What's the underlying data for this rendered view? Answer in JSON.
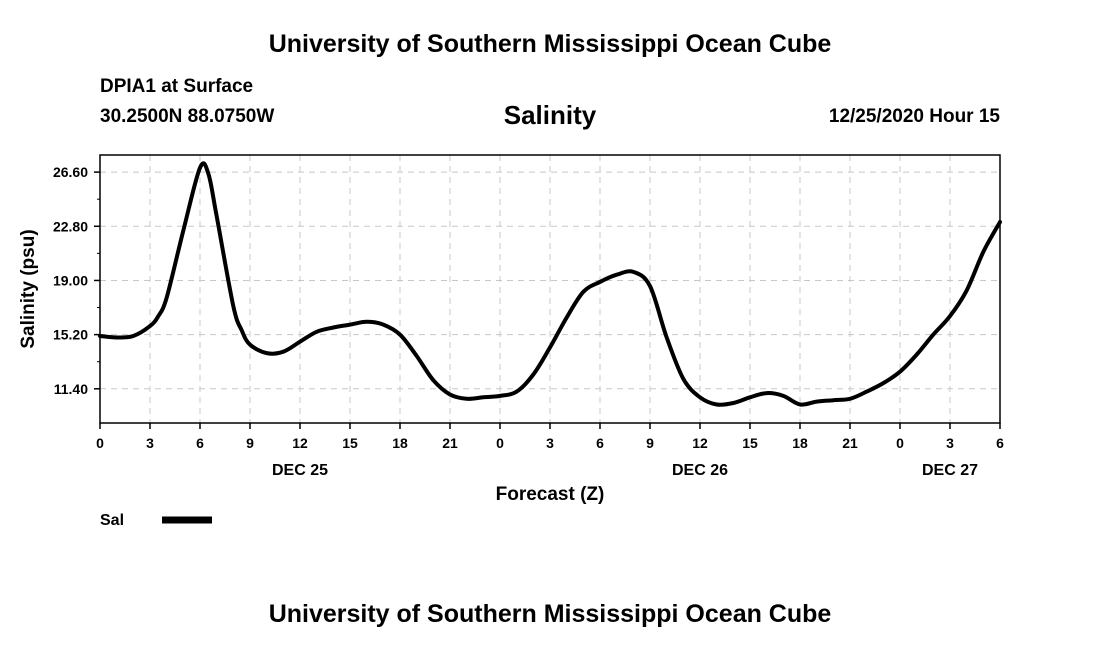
{
  "header": {
    "top_title": "University of Southern Mississippi Ocean Cube",
    "station": "DPIA1 at Surface",
    "coords": "30.2500N 88.0750W",
    "timestamp": "12/25/2020 Hour 15",
    "bottom_title": "University of Southern Mississippi Ocean Cube"
  },
  "legend": {
    "label": "Sal"
  },
  "chart_data": {
    "type": "line",
    "title": "Salinity",
    "xlabel": "Forecast (Z)",
    "ylabel": "Salinity (psu)",
    "xlim": [
      0,
      54
    ],
    "ylim": [
      9.0,
      27.8
    ],
    "yticks": [
      11.4,
      15.2,
      19.0,
      22.8,
      26.6
    ],
    "ytick_labels": [
      "11.40",
      "15.20",
      "19.00",
      "22.80",
      "26.60"
    ],
    "xticks": [
      0,
      3,
      6,
      9,
      12,
      15,
      18,
      21,
      24,
      27,
      30,
      33,
      36,
      39,
      42,
      45,
      48,
      51,
      54
    ],
    "xtick_labels": [
      "0",
      "3",
      "6",
      "9",
      "12",
      "15",
      "18",
      "21",
      "0",
      "3",
      "6",
      "9",
      "12",
      "15",
      "18",
      "21",
      "0",
      "3",
      "6"
    ],
    "date_labels": [
      {
        "x": 12,
        "label": "DEC 25"
      },
      {
        "x": 36,
        "label": "DEC 26"
      },
      {
        "x": 51,
        "label": "DEC 27"
      }
    ],
    "grid": true,
    "series": [
      {
        "name": "Sal",
        "color": "#000000",
        "x": [
          0,
          1,
          2,
          3,
          3.5,
          4,
          5,
          6,
          6.5,
          7,
          8,
          8.5,
          9,
          10,
          11,
          12,
          13,
          14,
          15,
          16,
          17,
          18,
          19,
          20,
          21,
          22,
          23,
          24,
          25,
          26,
          27,
          28,
          29,
          30,
          31,
          32,
          33,
          34,
          35,
          36,
          37,
          38,
          39,
          40,
          41,
          42,
          43,
          44,
          45,
          46,
          47,
          48,
          49,
          50,
          51,
          52,
          53,
          54
        ],
        "values": [
          15.1,
          15.0,
          15.1,
          15.8,
          16.5,
          17.8,
          22.5,
          26.9,
          26.5,
          23.5,
          17.2,
          15.5,
          14.5,
          13.9,
          14.0,
          14.7,
          15.4,
          15.7,
          15.9,
          16.1,
          15.9,
          15.2,
          13.7,
          12.0,
          11.0,
          10.7,
          10.8,
          10.9,
          11.2,
          12.4,
          14.3,
          16.4,
          18.2,
          18.9,
          19.4,
          19.6,
          18.6,
          15.0,
          12.1,
          10.8,
          10.3,
          10.4,
          10.8,
          11.1,
          10.9,
          10.3,
          10.5,
          10.6,
          10.7,
          11.2,
          11.8,
          12.6,
          13.8,
          15.2,
          16.5,
          18.3,
          21.0,
          23.1
        ]
      }
    ]
  }
}
